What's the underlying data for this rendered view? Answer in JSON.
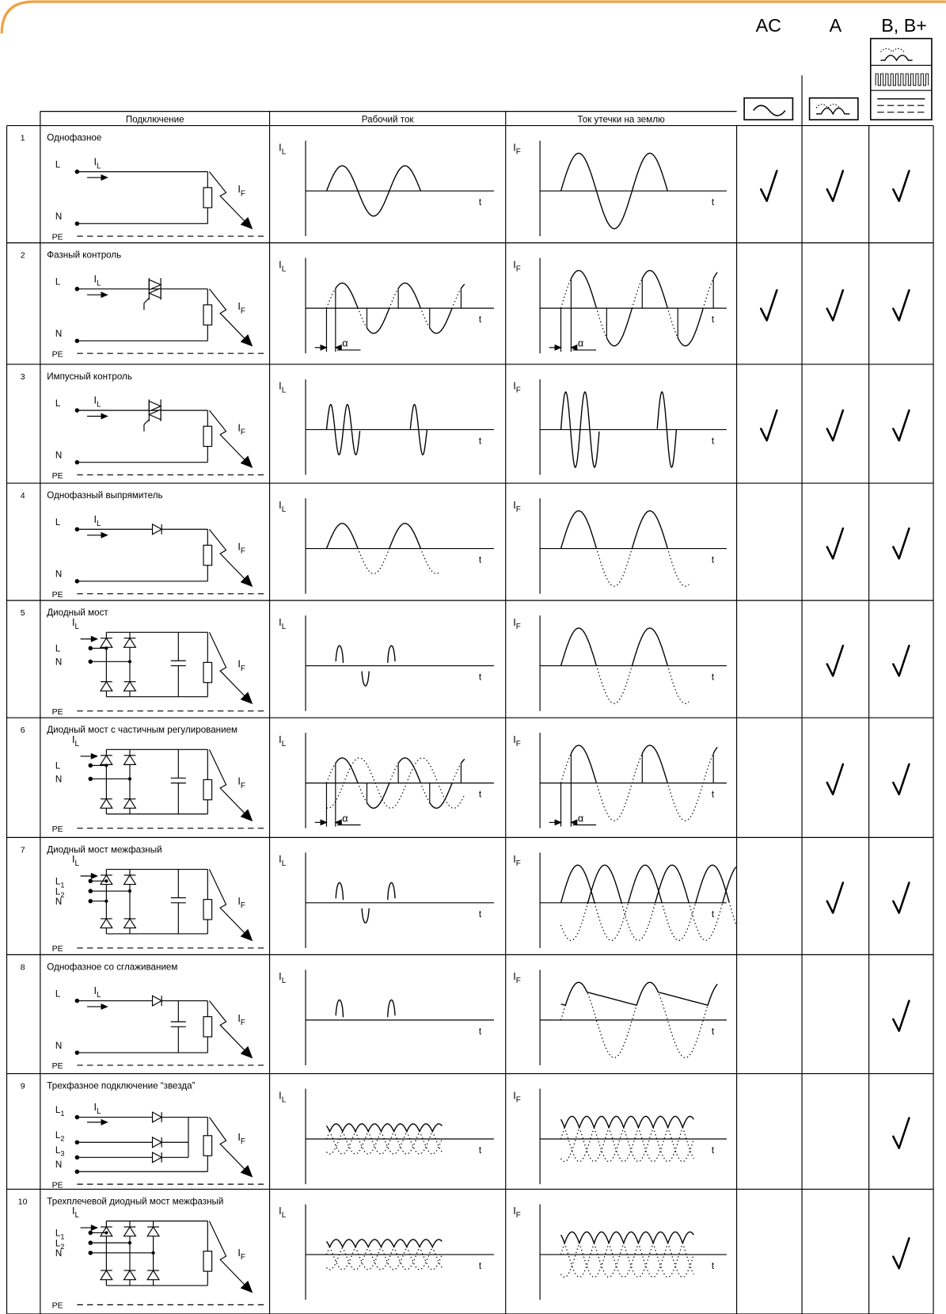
{
  "types": [
    "AC",
    "A",
    "B, B+"
  ],
  "columns": [
    "Подключение",
    "Рабочий ток",
    "Ток утечки на землю"
  ],
  "symbols": {
    "il": {
      "main": "I",
      "sub": "L"
    },
    "if": {
      "main": "I",
      "sub": "F"
    },
    "pe": "PE",
    "t": "t",
    "alpha": "α"
  },
  "rows": [
    {
      "n": "1",
      "title": "Однофазное",
      "circuit": "plain",
      "inputs": [
        "L",
        "N"
      ],
      "il_wave": "sine",
      "if_wave": "sine",
      "checks": {
        "ac": true,
        "a": true,
        "b": true
      }
    },
    {
      "n": "2",
      "title": "Фазный контроль",
      "circuit": "triac",
      "inputs": [
        "L",
        "N"
      ],
      "il_wave": "phase",
      "if_wave": "phase",
      "alpha": true,
      "checks": {
        "ac": true,
        "a": true,
        "b": true
      }
    },
    {
      "n": "3",
      "title": "Импусный контроль",
      "circuit": "triac",
      "inputs": [
        "L",
        "N"
      ],
      "il_wave": "burst",
      "if_wave": "burst",
      "checks": {
        "ac": true,
        "a": true,
        "b": true
      }
    },
    {
      "n": "4",
      "title": "Однофазный выпрямитель",
      "circuit": "diode",
      "inputs": [
        "L",
        "N"
      ],
      "il_wave": "half",
      "if_wave": "half",
      "checks": {
        "ac": false,
        "a": true,
        "b": true
      }
    },
    {
      "n": "5",
      "title": "Диодный мост",
      "circuit": "bridge",
      "inputs": [
        "L",
        "N"
      ],
      "il_wave": "pulses",
      "if_wave": "half",
      "checks": {
        "ac": false,
        "a": true,
        "b": true
      }
    },
    {
      "n": "6",
      "title": "Диодный мост с частичным регулированием",
      "circuit": "bridge",
      "inputs": [
        "L",
        "N"
      ],
      "il_wave": "phase2",
      "if_wave": "phase-pos",
      "alpha": true,
      "checks": {
        "ac": false,
        "a": true,
        "b": true
      }
    },
    {
      "n": "7",
      "title": "Диодный мост межфазный",
      "circuit": "bridge",
      "inputs": [
        {
          "main": "L",
          "sub": "1"
        },
        {
          "main": "L",
          "sub": "2"
        },
        "N"
      ],
      "il_wave": "pulses",
      "if_wave": "overlap",
      "checks": {
        "ac": false,
        "a": true,
        "b": true
      }
    },
    {
      "n": "8",
      "title": "Однофазное со сглаживанием",
      "circuit": "diode-cap",
      "inputs": [
        "L",
        "N"
      ],
      "il_wave": "pulses-pos",
      "if_wave": "smooth",
      "checks": {
        "ac": false,
        "a": false,
        "b": true
      }
    },
    {
      "n": "9",
      "title": "Трехфазное подключение “звезда”",
      "circuit": "star",
      "inputs": [
        {
          "main": "L",
          "sub": "1"
        },
        {
          "main": "L",
          "sub": "2"
        },
        {
          "main": "L",
          "sub": "3"
        },
        "N"
      ],
      "il_wave": "three",
      "if_wave": "three",
      "checks": {
        "ac": false,
        "a": false,
        "b": true
      }
    },
    {
      "n": "10",
      "title": "Трехплечевой диодный мост межфазный",
      "circuit": "bridge3",
      "inputs": [
        {
          "main": "L",
          "sub": "1"
        },
        {
          "main": "L",
          "sub": "2"
        },
        "N"
      ],
      "il_wave": "three",
      "if_wave": "three",
      "checks": {
        "ac": false,
        "a": false,
        "b": true
      }
    }
  ]
}
